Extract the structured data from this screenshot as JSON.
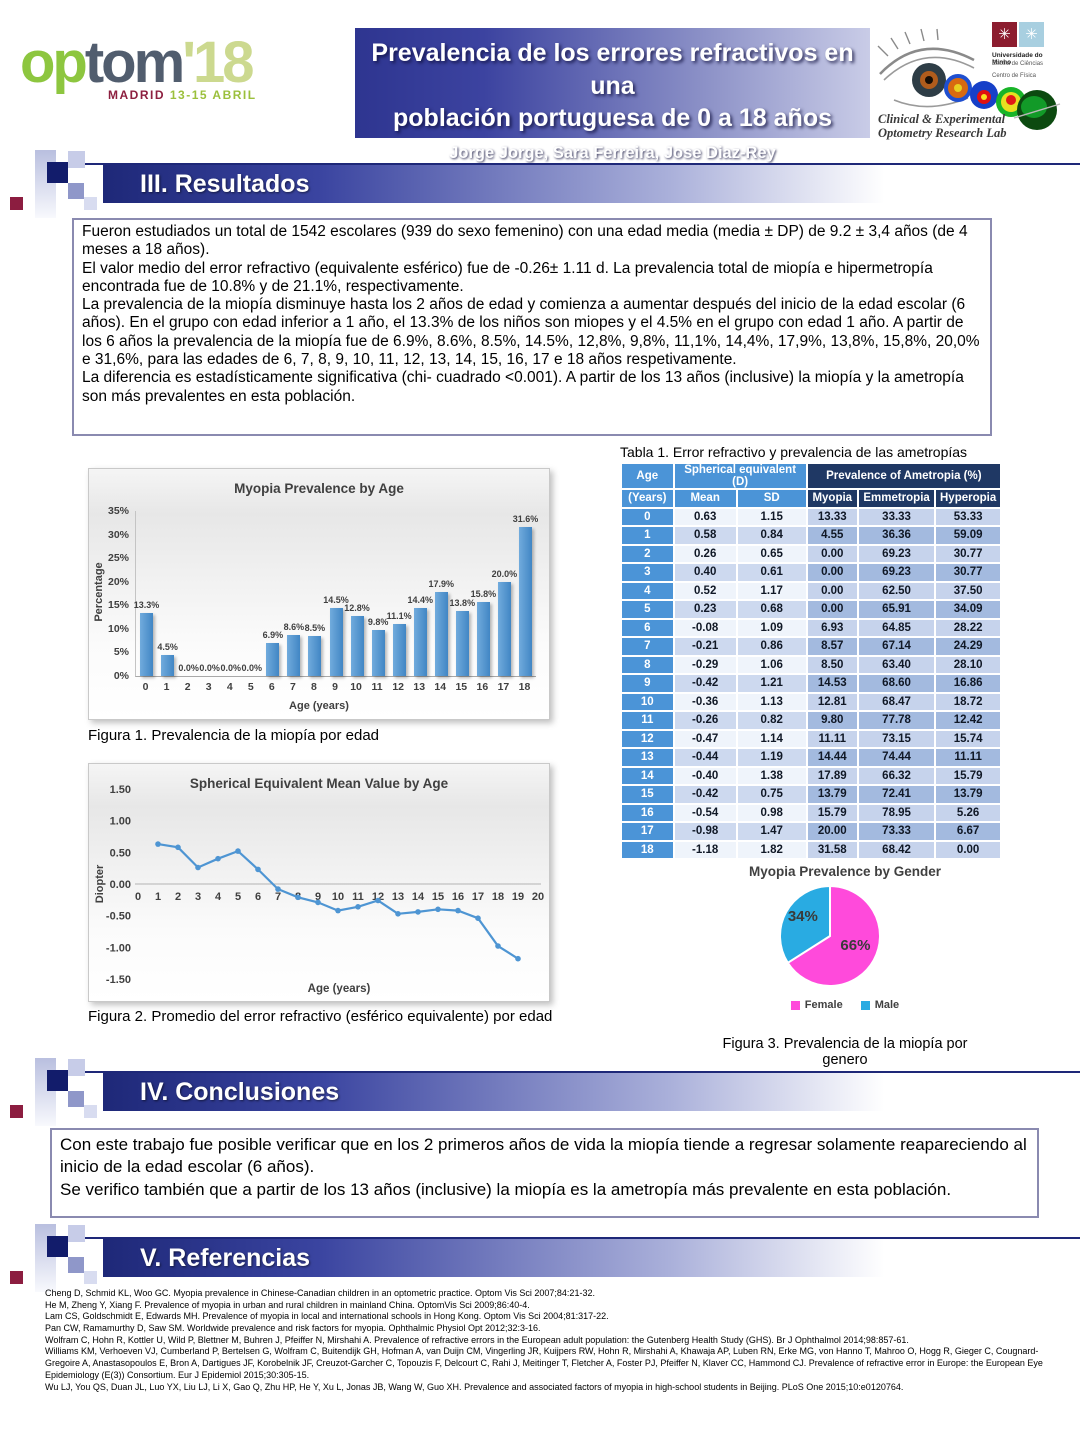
{
  "header": {
    "logo": {
      "part1": "op",
      "part2": "tom",
      "part3": "'18",
      "city": "MADRID",
      "dates": "13-15 ABRIL"
    },
    "title_line1": "Prevalencia de los errores refractivos en una",
    "title_line2": "población portuguesa de 0 a 18 años",
    "authors": "Jorge Jorge, Sara Ferreira, Jose Diaz-Rey",
    "lab": {
      "uni1": "Universidade do Minho",
      "uni2": "Escola de Ciências",
      "uni3": "Centro de Física",
      "line1": "Clinical & Experimental",
      "line2": "Optometry Research Lab"
    }
  },
  "sections": {
    "results": "III. Resultados",
    "conclusions": "IV. Conclusiones",
    "references": "V. Referencias"
  },
  "results_text": [
    "Fueron estudiados un total de 1542 escolares (939 do sexo femenino) con una edad media (media ± DP) de 9.2 ± 3,4 años (de 4 meses a 18 años).",
    "El valor medio del error refractivo (equivalente esférico) fue de -0.26± 1.11 d. La prevalencia total de miopía e hipermetropía encontrada fue de 10.8% y de 21.1%, respectivamente.",
    "La prevalencia de la miopía disminuye hasta los 2 años de edad y comienza a aumentar después del inicio de la edad escolar (6 años). En el grupo con edad inferior a 1 año, el 13.3% de los niños son miopes y el 4.5% en el grupo con edad 1 año. A partir de los 6 años la prevalencia de la miopía fue de 6.9%, 8.6%, 8.5%, 14.5%, 12,8%, 9,8%, 11,1%, 14,4%, 17,9%, 13,8%, 15,8%, 20,0% e 31,6%, para las edades de 6, 7, 8, 9, 10, 11, 12, 13, 14, 15, 16, 17 e 18 años respetivamente.",
    "La diferencia es estadísticamente significativa (chi- cuadrado <0.001). A partir de los 13 años (inclusive) la miopía y la ametropía son más prevalentes en esta población."
  ],
  "table": {
    "title": "Tabla 1. Error refractivo y prevalencia de las ametropías",
    "age_label1": "Age",
    "age_label2": "(Years)",
    "group_se": "Spherical equivalent (D)",
    "group_prev": "Prevalence of Ametropia (%)",
    "sub": [
      "Mean",
      "SD",
      "Myopia",
      "Emmetropia",
      "Hyperopia"
    ],
    "rows": [
      [
        "0",
        "0.63",
        "1.15",
        "13.33",
        "33.33",
        "53.33"
      ],
      [
        "1",
        "0.58",
        "0.84",
        "4.55",
        "36.36",
        "59.09"
      ],
      [
        "2",
        "0.26",
        "0.65",
        "0.00",
        "69.23",
        "30.77"
      ],
      [
        "3",
        "0.40",
        "0.61",
        "0.00",
        "69.23",
        "30.77"
      ],
      [
        "4",
        "0.52",
        "1.17",
        "0.00",
        "62.50",
        "37.50"
      ],
      [
        "5",
        "0.23",
        "0.68",
        "0.00",
        "65.91",
        "34.09"
      ],
      [
        "6",
        "-0.08",
        "1.09",
        "6.93",
        "64.85",
        "28.22"
      ],
      [
        "7",
        "-0.21",
        "0.86",
        "8.57",
        "67.14",
        "24.29"
      ],
      [
        "8",
        "-0.29",
        "1.06",
        "8.50",
        "63.40",
        "28.10"
      ],
      [
        "9",
        "-0.42",
        "1.21",
        "14.53",
        "68.60",
        "16.86"
      ],
      [
        "10",
        "-0.36",
        "1.13",
        "12.81",
        "68.47",
        "18.72"
      ],
      [
        "11",
        "-0.26",
        "0.82",
        "9.80",
        "77.78",
        "12.42"
      ],
      [
        "12",
        "-0.47",
        "1.14",
        "11.11",
        "73.15",
        "15.74"
      ],
      [
        "13",
        "-0.44",
        "1.19",
        "14.44",
        "74.44",
        "11.11"
      ],
      [
        "14",
        "-0.40",
        "1.38",
        "17.89",
        "66.32",
        "15.79"
      ],
      [
        "15",
        "-0.42",
        "0.75",
        "13.79",
        "72.41",
        "13.79"
      ],
      [
        "16",
        "-0.54",
        "0.98",
        "15.79",
        "78.95",
        "5.26"
      ],
      [
        "17",
        "-0.98",
        "1.47",
        "20.00",
        "73.33",
        "6.67"
      ],
      [
        "18",
        "-1.18",
        "1.82",
        "31.58",
        "68.42",
        "0.00"
      ]
    ]
  },
  "chart_data": [
    {
      "type": "bar",
      "title": "Myopia Prevalence by Age",
      "xlabel": "Age (years)",
      "ylabel": "Percentage",
      "categories": [
        "0",
        "1",
        "2",
        "3",
        "4",
        "5",
        "6",
        "7",
        "8",
        "9",
        "10",
        "11",
        "12",
        "13",
        "14",
        "15",
        "16",
        "17",
        "18"
      ],
      "values": [
        13.3,
        4.5,
        0.0,
        0.0,
        0.0,
        0.0,
        6.9,
        8.6,
        8.5,
        14.5,
        12.8,
        9.8,
        11.1,
        14.4,
        17.9,
        13.8,
        15.8,
        20.0,
        31.6
      ],
      "data_labels": [
        "13.3%",
        "4.5%",
        "0.0%",
        "0.0%",
        "0.0%",
        "0.0%",
        "6.9%",
        "8.6%",
        "8.5%",
        "14.5%",
        "12.8%",
        "9.8%",
        "11.1%",
        "14.4%",
        "17.9%",
        "13.8%",
        "15.8%",
        "20.0%",
        "31.6%"
      ],
      "ylim": [
        0,
        35
      ],
      "yticks": [
        "0%",
        "5%",
        "10%",
        "15%",
        "20%",
        "25%",
        "30%",
        "35%"
      ],
      "grid": false,
      "bar_color": "#4e95d3"
    },
    {
      "type": "line",
      "title": "Spherical Equivalent Mean Value by Age",
      "xlabel": "Age (years)",
      "ylabel": "Diopter",
      "x": [
        0,
        1,
        2,
        3,
        4,
        5,
        6,
        7,
        8,
        9,
        10,
        11,
        12,
        13,
        14,
        15,
        16,
        17,
        18
      ],
      "values": [
        0.63,
        0.58,
        0.26,
        0.4,
        0.52,
        0.23,
        -0.08,
        -0.21,
        -0.29,
        -0.42,
        -0.36,
        -0.26,
        -0.47,
        -0.44,
        -0.4,
        -0.42,
        -0.54,
        -0.98,
        -1.18
      ],
      "xticks": [
        "0",
        "1",
        "2",
        "3",
        "4",
        "5",
        "6",
        "7",
        "8",
        "9",
        "10",
        "11",
        "12",
        "13",
        "14",
        "15",
        "16",
        "17",
        "18",
        "19",
        "20"
      ],
      "x_offset_note": "ages 0-18 plotted at axis positions 1-19",
      "ylim": [
        -1.5,
        1.5
      ],
      "yticks": [
        "1.50",
        "1.00",
        "0.50",
        "0.00",
        "-0.50",
        "-1.00",
        "-1.50"
      ],
      "grid": false,
      "line_color": "#4e95d3"
    },
    {
      "type": "pie",
      "title": "Myopia Prevalence by Gender",
      "labels": [
        "Female",
        "Male"
      ],
      "values": [
        66,
        34
      ],
      "display": [
        "66%",
        "34%"
      ],
      "colors": [
        "#ff4adb",
        "#29abe2"
      ],
      "legend_position": "bottom"
    }
  ],
  "figures": {
    "fig1": "Figura 1. Prevalencia de la miopía por edad",
    "fig2": "Figura 2. Promedio del error refractivo (esférico equivalente) por edad",
    "fig3": "Figura 3. Prevalencia de la miopía por genero"
  },
  "conclusions_text": [
    "Con este trabajo fue posible verificar que en los 2 primeros años de vida la miopía tiende a regresar solamente reapareciendo al inicio de la edad escolar (6 años).",
    "Se verifico también que a partir de los 13 años (inclusive) la miopía es la ametropía más prevalente en esta población."
  ],
  "references": [
    "Cheng D, Schmid KL, Woo GC. Myopia prevalence in Chinese-Canadian children in an optometric practice. Optom Vis Sci 2007;84:21-32.",
    "He M, Zheng Y, Xiang F. Prevalence of myopia in urban and rural children in mainland China. OptomVis Sci 2009;86:40-4.",
    "Lam CS, Goldschmidt E, Edwards MH. Prevalence of myopia in local and international schools in Hong Kong. Optom Vis Sci 2004;81:317-22.",
    "Pan CW, Ramamurthy D, Saw SM. Worldwide prevalence and risk factors for myopia. Ophthalmic Physiol Opt 2012;32:3-16.",
    "Wolfram C, Hohn R, Kottler U, Wild P, Blettner M, Buhren J, Pfeiffer N, Mirshahi A. Prevalence of refractive errors in the European adult population: the Gutenberg Health Study (GHS). Br J Ophthalmol 2014;98:857-61.",
    "Williams KM, Verhoeven VJ, Cumberland P, Bertelsen G, Wolfram C, Buitendijk GH, Hofman A, van Duijn CM, Vingerling JR, Kuijpers RW, Hohn R, Mirshahi A, Khawaja AP, Luben RN, Erke MG, von Hanno T, Mahroo O, Hogg R, Gieger C, Cougnard-Gregoire A, Anastasopoulos E, Bron A, Dartigues JF, Korobelnik JF, Creuzot-Garcher C, Topouzis F, Delcourt C, Rahi J, Meitinger T, Fletcher A, Foster PJ, Pfeiffer N, Klaver CC, Hammond CJ. Prevalence of refractive error in Europe: the European Eye Epidemiology (E(3)) Consortium. Eur J Epidemiol 2015;30:305-15.",
    "Wu LJ, You QS, Duan JL, Luo YX, Liu LJ, Li X, Gao Q, Zhu HP, He Y, Xu L, Jonas JB, Wang W, Guo XH. Prevalence and associated factors of myopia in high-school students in Beijing. PLoS One 2015;10:e0120764."
  ]
}
